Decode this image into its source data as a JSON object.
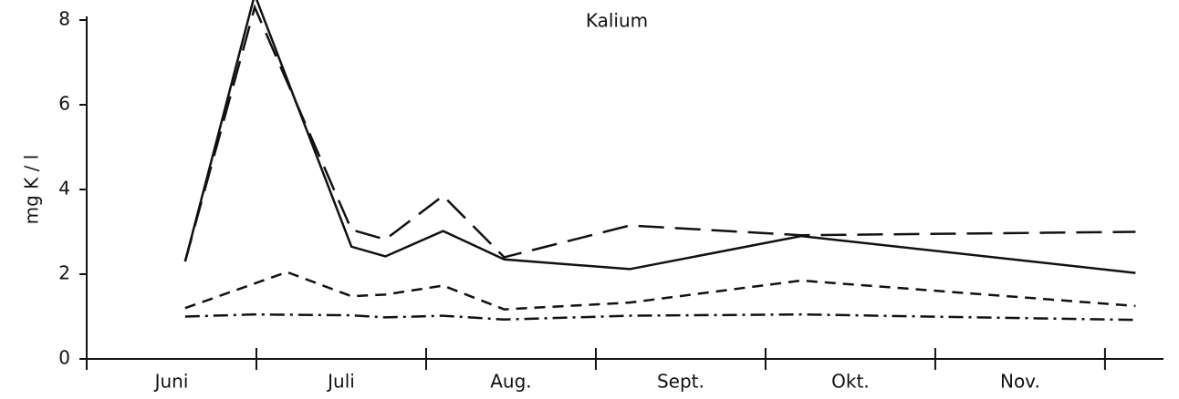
{
  "chart_data": {
    "type": "line",
    "title": "Kalium",
    "y_label": "mg K / l",
    "categories": [
      "Juni",
      "Juli",
      "Aug.",
      "Sept.",
      "Okt.",
      "Nov."
    ],
    "xlim": [
      6,
      12.35
    ],
    "xticks": [
      6,
      7,
      8,
      9,
      10,
      11,
      12
    ],
    "ylim": [
      0,
      8
    ],
    "yticks": [
      0,
      2,
      4,
      6,
      8
    ],
    "series": [
      {
        "color": "#111111",
        "dash": "none",
        "x": [
          6.58,
          6.99,
          7.56,
          7.76,
          8.1,
          8.46,
          9.2,
          10.21,
          12.18
        ],
        "values": [
          2.3,
          8.6,
          2.65,
          2.42,
          3.02,
          2.35,
          2.12,
          2.9,
          2.03
        ]
      },
      {
        "color": "#111111",
        "dash": "28 12",
        "x": [
          6.58,
          6.99,
          7.56,
          7.76,
          8.1,
          8.46,
          9.2,
          10.21,
          12.18
        ],
        "values": [
          2.3,
          8.3,
          3.05,
          2.82,
          3.85,
          2.4,
          3.15,
          2.92,
          3.0
        ]
      },
      {
        "color": "#111111",
        "dash": "12 8",
        "x": [
          6.58,
          7.18,
          7.56,
          7.76,
          8.1,
          8.46,
          9.2,
          10.21,
          12.18
        ],
        "values": [
          1.2,
          2.05,
          1.48,
          1.52,
          1.73,
          1.17,
          1.33,
          1.85,
          1.25
        ]
      },
      {
        "color": "#111111",
        "dash": "16 6 3 6",
        "x": [
          6.58,
          6.99,
          7.56,
          7.76,
          8.1,
          8.46,
          9.2,
          10.21,
          12.18
        ],
        "values": [
          1.0,
          1.05,
          1.03,
          0.98,
          1.02,
          0.93,
          1.02,
          1.05,
          0.92
        ]
      }
    ]
  }
}
